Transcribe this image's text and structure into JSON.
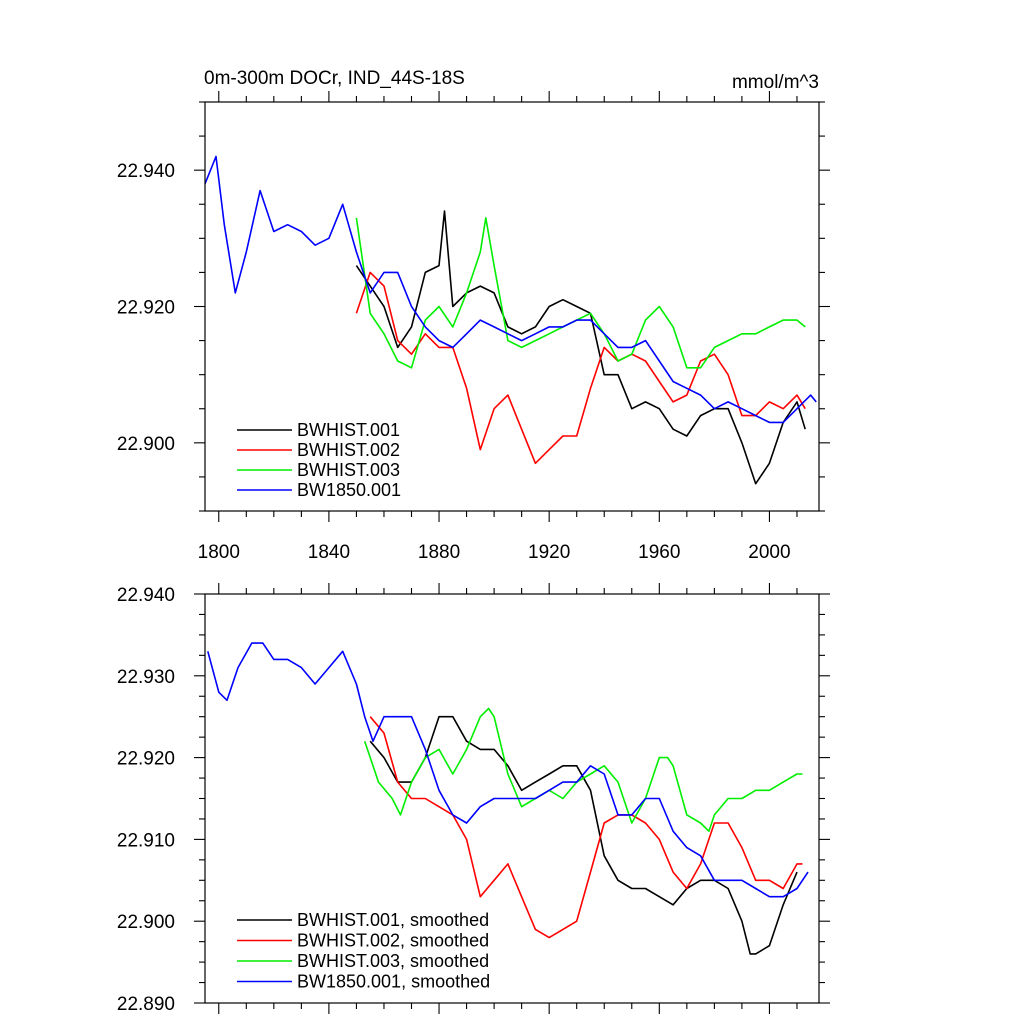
{
  "chart_data": [
    {
      "type": "line",
      "title": "0m-300m DOCr, IND_44S-18S",
      "units": "mmol/m^3",
      "xlabel": "",
      "ylabel": "",
      "xlim": [
        1795,
        2018
      ],
      "ylim": [
        22.89,
        22.95
      ],
      "xticks": [
        1800,
        1840,
        1880,
        1920,
        1960,
        2000
      ],
      "xtick_labels": [
        "1800",
        "1840",
        "1880",
        "1920",
        "1960",
        "2000"
      ],
      "yticks": [
        22.9,
        22.92,
        22.94
      ],
      "ytick_labels": [
        "22.900",
        "22.920",
        "22.940"
      ],
      "grid": false,
      "legend_position": "bottom-left",
      "series": [
        {
          "name": "BWHIST.001",
          "color": "#000000",
          "x": [
            1850,
            1855,
            1860,
            1865,
            1870,
            1875,
            1880,
            1882,
            1885,
            1890,
            1895,
            1900,
            1905,
            1910,
            1915,
            1920,
            1925,
            1930,
            1935,
            1940,
            1945,
            1950,
            1955,
            1960,
            1965,
            1970,
            1975,
            1980,
            1985,
            1990,
            1995,
            2000,
            2005,
            2010,
            2013
          ],
          "y": [
            22.926,
            22.923,
            22.92,
            22.914,
            22.917,
            22.925,
            22.926,
            22.934,
            22.92,
            22.922,
            22.923,
            22.922,
            22.917,
            22.916,
            22.917,
            22.92,
            22.921,
            22.92,
            22.919,
            22.91,
            22.91,
            22.905,
            22.906,
            22.905,
            22.902,
            22.901,
            22.904,
            22.905,
            22.905,
            22.9,
            22.894,
            22.897,
            22.903,
            22.906,
            22.902
          ]
        },
        {
          "name": "BWHIST.002",
          "color": "#ff0000",
          "x": [
            1850,
            1855,
            1860,
            1865,
            1870,
            1875,
            1880,
            1885,
            1890,
            1895,
            1900,
            1905,
            1910,
            1915,
            1920,
            1925,
            1930,
            1935,
            1940,
            1945,
            1950,
            1955,
            1960,
            1965,
            1970,
            1975,
            1980,
            1985,
            1990,
            1995,
            2000,
            2005,
            2010,
            2013
          ],
          "y": [
            22.919,
            22.925,
            22.923,
            22.915,
            22.913,
            22.916,
            22.914,
            22.914,
            22.908,
            22.899,
            22.905,
            22.907,
            22.902,
            22.897,
            22.899,
            22.901,
            22.901,
            22.908,
            22.914,
            22.912,
            22.913,
            22.912,
            22.909,
            22.906,
            22.907,
            22.912,
            22.913,
            22.91,
            22.904,
            22.904,
            22.906,
            22.905,
            22.907,
            22.905
          ]
        },
        {
          "name": "BWHIST.003",
          "color": "#00ee00",
          "x": [
            1850,
            1855,
            1860,
            1865,
            1870,
            1875,
            1880,
            1885,
            1890,
            1895,
            1897,
            1900,
            1905,
            1910,
            1915,
            1920,
            1925,
            1930,
            1935,
            1940,
            1945,
            1950,
            1955,
            1960,
            1965,
            1970,
            1975,
            1980,
            1985,
            1990,
            1995,
            2000,
            2005,
            2010,
            2013
          ],
          "y": [
            22.933,
            22.919,
            22.916,
            22.912,
            22.911,
            22.918,
            22.92,
            22.917,
            22.922,
            22.928,
            22.933,
            22.926,
            22.915,
            22.914,
            22.915,
            22.916,
            22.917,
            22.918,
            22.919,
            22.916,
            22.912,
            22.913,
            22.918,
            22.92,
            22.917,
            22.911,
            22.911,
            22.914,
            22.915,
            22.916,
            22.916,
            22.917,
            22.918,
            22.918,
            22.917
          ]
        },
        {
          "name": "BW1850.001",
          "color": "#0000ff",
          "x": [
            1795,
            1799,
            1802,
            1806,
            1810,
            1815,
            1820,
            1825,
            1830,
            1835,
            1840,
            1845,
            1850,
            1855,
            1860,
            1865,
            1870,
            1875,
            1880,
            1885,
            1890,
            1895,
            1900,
            1905,
            1910,
            1915,
            1920,
            1925,
            1930,
            1935,
            1940,
            1945,
            1950,
            1955,
            1960,
            1965,
            1970,
            1975,
            1980,
            1985,
            1990,
            1995,
            2000,
            2005,
            2010,
            2015,
            2017
          ],
          "y": [
            22.938,
            22.942,
            22.932,
            22.922,
            22.928,
            22.937,
            22.931,
            22.932,
            22.931,
            22.929,
            22.93,
            22.935,
            22.928,
            22.922,
            22.925,
            22.925,
            22.92,
            22.917,
            22.915,
            22.914,
            22.916,
            22.918,
            22.917,
            22.916,
            22.915,
            22.916,
            22.917,
            22.917,
            22.918,
            22.918,
            22.916,
            22.914,
            22.914,
            22.915,
            22.912,
            22.909,
            22.908,
            22.907,
            22.905,
            22.906,
            22.905,
            22.904,
            22.903,
            22.903,
            22.905,
            22.907,
            22.906
          ]
        }
      ]
    },
    {
      "type": "line",
      "title": "",
      "xlabel": "",
      "ylabel": "",
      "xlim": [
        1795,
        2018
      ],
      "ylim": [
        22.89,
        22.94
      ],
      "xticks": [
        1800,
        1840,
        1880,
        1920,
        1960,
        2000
      ],
      "yticks": [
        22.89,
        22.9,
        22.91,
        22.92,
        22.93,
        22.94
      ],
      "ytick_labels": [
        "22.890",
        "22.900",
        "22.910",
        "22.920",
        "22.930",
        "22.940"
      ],
      "grid": false,
      "legend_position": "bottom-left",
      "series": [
        {
          "name": "BWHIST.001, smoothed",
          "color": "#000000",
          "x": [
            1855,
            1860,
            1865,
            1870,
            1875,
            1880,
            1885,
            1890,
            1895,
            1900,
            1905,
            1910,
            1915,
            1920,
            1925,
            1930,
            1935,
            1940,
            1945,
            1950,
            1955,
            1960,
            1965,
            1970,
            1975,
            1980,
            1985,
            1990,
            1993,
            1995,
            2000,
            2005,
            2010
          ],
          "y": [
            22.922,
            22.92,
            22.917,
            22.917,
            22.92,
            22.925,
            22.925,
            22.922,
            22.921,
            22.921,
            22.919,
            22.916,
            22.917,
            22.918,
            22.919,
            22.919,
            22.916,
            22.908,
            22.905,
            22.904,
            22.904,
            22.903,
            22.902,
            22.904,
            22.905,
            22.905,
            22.904,
            22.9,
            22.896,
            22.896,
            22.897,
            22.902,
            22.906
          ]
        },
        {
          "name": "BWHIST.002, smoothed",
          "color": "#ff0000",
          "x": [
            1855,
            1860,
            1865,
            1870,
            1875,
            1880,
            1885,
            1890,
            1895,
            1900,
            1905,
            1910,
            1915,
            1920,
            1925,
            1930,
            1935,
            1940,
            1945,
            1950,
            1955,
            1960,
            1965,
            1970,
            1975,
            1980,
            1985,
            1990,
            1995,
            2000,
            2005,
            2010,
            2012
          ],
          "y": [
            22.925,
            22.923,
            22.917,
            22.915,
            22.915,
            22.914,
            22.913,
            22.91,
            22.903,
            22.905,
            22.907,
            22.903,
            22.899,
            22.898,
            22.899,
            22.9,
            22.906,
            22.912,
            22.913,
            22.913,
            22.912,
            22.91,
            22.906,
            22.904,
            22.907,
            22.912,
            22.912,
            22.909,
            22.905,
            22.905,
            22.904,
            22.907,
            22.907
          ]
        },
        {
          "name": "BWHIST.003, smoothed",
          "color": "#00ee00",
          "x": [
            1853,
            1858,
            1863,
            1866,
            1870,
            1875,
            1880,
            1885,
            1890,
            1895,
            1898,
            1900,
            1905,
            1910,
            1915,
            1920,
            1925,
            1930,
            1935,
            1940,
            1945,
            1950,
            1955,
            1960,
            1963,
            1965,
            1970,
            1975,
            1978,
            1980,
            1985,
            1990,
            1995,
            2000,
            2005,
            2010,
            2012
          ],
          "y": [
            22.922,
            22.917,
            22.915,
            22.913,
            22.917,
            22.92,
            22.921,
            22.918,
            22.921,
            22.925,
            22.926,
            22.925,
            22.918,
            22.914,
            22.915,
            22.916,
            22.915,
            22.917,
            22.918,
            22.919,
            22.917,
            22.912,
            22.915,
            22.92,
            22.92,
            22.919,
            22.913,
            22.912,
            22.911,
            22.913,
            22.915,
            22.915,
            22.916,
            22.916,
            22.917,
            22.918,
            22.918
          ]
        },
        {
          "name": "BW1850.001, smoothed",
          "color": "#0000ff",
          "x": [
            1796,
            1800,
            1803,
            1807,
            1812,
            1816,
            1820,
            1825,
            1830,
            1835,
            1840,
            1845,
            1850,
            1853,
            1856,
            1860,
            1865,
            1870,
            1875,
            1880,
            1885,
            1890,
            1895,
            1900,
            1905,
            1910,
            1915,
            1920,
            1925,
            1930,
            1935,
            1940,
            1945,
            1950,
            1955,
            1960,
            1965,
            1970,
            1975,
            1980,
            1985,
            1990,
            1995,
            2000,
            2005,
            2010,
            2014
          ],
          "y": [
            22.933,
            22.928,
            22.927,
            22.931,
            22.934,
            22.934,
            22.932,
            22.932,
            22.931,
            22.929,
            22.931,
            22.933,
            22.929,
            22.925,
            22.922,
            22.925,
            22.925,
            22.925,
            22.921,
            22.916,
            22.913,
            22.912,
            22.914,
            22.915,
            22.915,
            22.915,
            22.915,
            22.916,
            22.917,
            22.917,
            22.919,
            22.918,
            22.913,
            22.913,
            22.915,
            22.915,
            22.911,
            22.909,
            22.908,
            22.905,
            22.905,
            22.905,
            22.904,
            22.903,
            22.903,
            22.904,
            22.906
          ]
        }
      ]
    }
  ]
}
